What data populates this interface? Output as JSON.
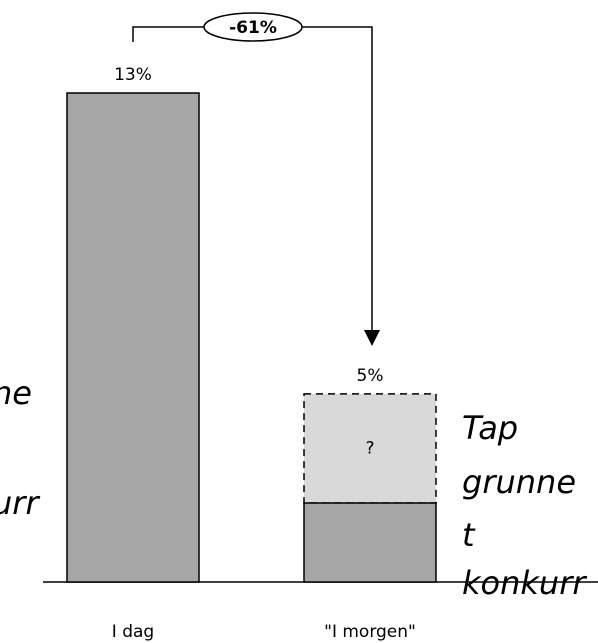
{
  "chart_data": {
    "type": "bar",
    "categories": [
      "I dag",
      "\"I morgen\""
    ],
    "values": [
      13,
      5
    ],
    "value_labels": [
      "13%",
      "5%"
    ],
    "solid_part": [
      13,
      2.1
    ],
    "segment_label": "?",
    "color": "#a6a6a6",
    "uncertain_color": "#d9d9d9",
    "ylim": [
      0,
      13
    ],
    "annotation": "-61%",
    "left_text": [
      "ne",
      "urr"
    ],
    "right_text": [
      "Tap",
      "grunne",
      "t",
      "konkurr"
    ]
  }
}
